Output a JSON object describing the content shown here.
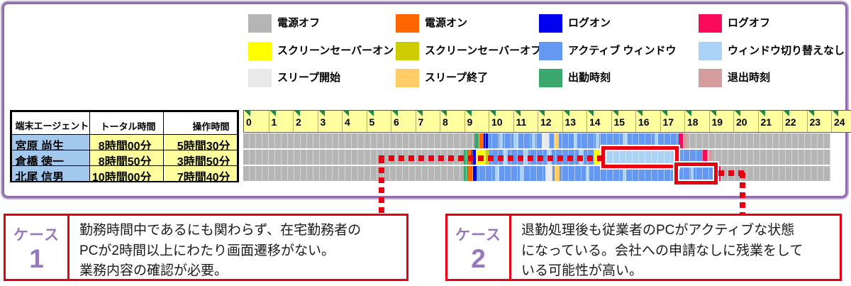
{
  "colors": {
    "panel_border": "#8f6cab",
    "panel_border_light": "#c0a8d4",
    "accent_red": "#e60012",
    "case_label_purple": "#9678bc",
    "name_cell_bg": "#a2c8ee",
    "time_cell_bg": "#ffff9e",
    "hour_header_bg": "#ffffa0",
    "tick_triangle_green": "#1e8a44",
    "power_off_gray": "#b5b5b5"
  },
  "legend": {
    "items": [
      {
        "key": "power_off",
        "label": "電源オフ",
        "color": "#b5b5b5"
      },
      {
        "key": "power_on",
        "label": "電源オン",
        "color": "#ff6600"
      },
      {
        "key": "logon",
        "label": "ログオン",
        "color": "#0000ee"
      },
      {
        "key": "logoff",
        "label": "ログオフ",
        "color": "#fa0a5a"
      },
      {
        "key": "ss_on",
        "label": "スクリーンセーバーオン",
        "color": "#ffff00"
      },
      {
        "key": "ss_off",
        "label": "スクリーンセーバーオフ",
        "color": "#cccc00"
      },
      {
        "key": "active",
        "label": "アクティブ ウィンドウ",
        "color": "#6598f0"
      },
      {
        "key": "no_switch",
        "label": "ウィンドウ切り替えなし",
        "color": "#aad2f7"
      },
      {
        "key": "sleep_start",
        "label": "スリープ開始",
        "color": "#e9e9e9"
      },
      {
        "key": "sleep_end",
        "label": "スリープ終了",
        "color": "#ffcc66"
      },
      {
        "key": "clock_in",
        "label": "出勤時刻",
        "color": "#3aa76d"
      },
      {
        "key": "clock_out",
        "label": "退出時刻",
        "color": "#d49c9c"
      }
    ]
  },
  "table": {
    "headers": {
      "agent": "端末エージェント名",
      "total": "トータル時間",
      "op": "操作時間"
    },
    "rows": [
      {
        "name": "宮原 尚生",
        "total": "8時間00分",
        "op": "5時間30分"
      },
      {
        "name": "倉橋 徳一",
        "total": "8時間50分",
        "op": "3時間50分"
      },
      {
        "name": "北尾 信男",
        "total": "10時間00分",
        "op": "7時間40分"
      }
    ]
  },
  "chart_data": {
    "type": "heatmap",
    "x_axis": {
      "unit": "hour",
      "min": 0,
      "max": 24,
      "tick_labels": [
        "0",
        "1",
        "2",
        "3",
        "4",
        "5",
        "6",
        "7",
        "8",
        "9",
        "10",
        "11",
        "12",
        "13",
        "14",
        "15",
        "16",
        "17",
        "18",
        "19",
        "20",
        "21",
        "22",
        "23",
        "24"
      ]
    },
    "rows": [
      {
        "name": "宮原 尚生",
        "segments": [
          {
            "start": 0,
            "end": 9.45,
            "state": "power_off"
          },
          {
            "start": 9.45,
            "end": 9.63,
            "state": "clock_in"
          },
          {
            "start": 9.63,
            "end": 9.82,
            "state": "power_on"
          },
          {
            "start": 9.82,
            "end": 10.0,
            "state": "logon"
          },
          {
            "start": 10.0,
            "end": 10.45,
            "state": "active"
          },
          {
            "start": 10.45,
            "end": 10.6,
            "state": "no_switch"
          },
          {
            "start": 10.6,
            "end": 11.05,
            "state": "active"
          },
          {
            "start": 11.05,
            "end": 11.25,
            "state": "no_switch"
          },
          {
            "start": 11.25,
            "end": 11.8,
            "state": "active"
          },
          {
            "start": 11.8,
            "end": 11.95,
            "state": "no_switch"
          },
          {
            "start": 11.95,
            "end": 12.2,
            "state": "active"
          },
          {
            "start": 12.2,
            "end": 12.5,
            "state": "sleep_start"
          },
          {
            "start": 12.5,
            "end": 12.7,
            "state": "active"
          },
          {
            "start": 12.7,
            "end": 12.9,
            "state": "sleep_end"
          },
          {
            "start": 12.9,
            "end": 13.5,
            "state": "active"
          },
          {
            "start": 13.5,
            "end": 13.65,
            "state": "no_switch"
          },
          {
            "start": 13.65,
            "end": 14.4,
            "state": "active"
          },
          {
            "start": 14.4,
            "end": 14.55,
            "state": "no_switch"
          },
          {
            "start": 14.55,
            "end": 15.5,
            "state": "active"
          },
          {
            "start": 15.5,
            "end": 15.7,
            "state": "no_switch"
          },
          {
            "start": 15.7,
            "end": 16.8,
            "state": "active"
          },
          {
            "start": 16.8,
            "end": 16.95,
            "state": "no_switch"
          },
          {
            "start": 16.95,
            "end": 17.8,
            "state": "active"
          },
          {
            "start": 17.8,
            "end": 17.97,
            "state": "logoff"
          },
          {
            "start": 17.97,
            "end": 18.15,
            "state": "clock_out"
          },
          {
            "start": 18.15,
            "end": 24,
            "state": "power_off"
          }
        ]
      },
      {
        "name": "倉橋 徳一",
        "segments": [
          {
            "start": 0,
            "end": 9.0,
            "state": "power_off"
          },
          {
            "start": 9.0,
            "end": 9.16,
            "state": "clock_in"
          },
          {
            "start": 9.16,
            "end": 9.33,
            "state": "power_on"
          },
          {
            "start": 9.33,
            "end": 9.5,
            "state": "logon"
          },
          {
            "start": 9.5,
            "end": 9.88,
            "state": "ss_on"
          },
          {
            "start": 9.88,
            "end": 10.05,
            "state": "ss_off"
          },
          {
            "start": 10.05,
            "end": 10.6,
            "state": "active"
          },
          {
            "start": 10.6,
            "end": 10.8,
            "state": "no_switch"
          },
          {
            "start": 10.8,
            "end": 11.45,
            "state": "active"
          },
          {
            "start": 11.45,
            "end": 11.65,
            "state": "no_switch"
          },
          {
            "start": 11.65,
            "end": 12.4,
            "state": "active"
          },
          {
            "start": 12.4,
            "end": 12.6,
            "state": "no_switch"
          },
          {
            "start": 12.6,
            "end": 13.7,
            "state": "active"
          },
          {
            "start": 13.7,
            "end": 13.9,
            "state": "no_switch"
          },
          {
            "start": 13.9,
            "end": 14.35,
            "state": "active"
          },
          {
            "start": 14.35,
            "end": 14.7,
            "state": "ss_on"
          },
          {
            "start": 14.7,
            "end": 14.85,
            "state": "ss_off"
          },
          {
            "start": 14.85,
            "end": 17.6,
            "state": "no_switch"
          },
          {
            "start": 17.6,
            "end": 18.75,
            "state": "active"
          },
          {
            "start": 18.75,
            "end": 18.95,
            "state": "logoff"
          },
          {
            "start": 18.95,
            "end": 19.15,
            "state": "clock_out"
          },
          {
            "start": 19.15,
            "end": 24,
            "state": "power_off"
          }
        ]
      },
      {
        "name": "北尾 信男",
        "segments": [
          {
            "start": 0,
            "end": 9.0,
            "state": "power_off"
          },
          {
            "start": 9.0,
            "end": 9.2,
            "state": "clock_in"
          },
          {
            "start": 9.2,
            "end": 9.4,
            "state": "power_on"
          },
          {
            "start": 9.4,
            "end": 9.55,
            "state": "logon"
          },
          {
            "start": 9.55,
            "end": 10.3,
            "state": "active"
          },
          {
            "start": 10.3,
            "end": 10.45,
            "state": "no_switch"
          },
          {
            "start": 10.45,
            "end": 11.3,
            "state": "active"
          },
          {
            "start": 11.3,
            "end": 11.45,
            "state": "no_switch"
          },
          {
            "start": 11.45,
            "end": 12.35,
            "state": "active"
          },
          {
            "start": 12.35,
            "end": 12.65,
            "state": "sleep_start"
          },
          {
            "start": 12.65,
            "end": 12.72,
            "state": "active"
          },
          {
            "start": 12.72,
            "end": 12.92,
            "state": "sleep_end"
          },
          {
            "start": 12.92,
            "end": 14.0,
            "state": "active"
          },
          {
            "start": 14.0,
            "end": 14.15,
            "state": "no_switch"
          },
          {
            "start": 14.15,
            "end": 15.5,
            "state": "active"
          },
          {
            "start": 15.5,
            "end": 15.65,
            "state": "no_switch"
          },
          {
            "start": 15.65,
            "end": 17.65,
            "state": "active"
          },
          {
            "start": 17.65,
            "end": 17.82,
            "state": "clock_out"
          },
          {
            "start": 17.82,
            "end": 18.3,
            "state": "active"
          },
          {
            "start": 18.3,
            "end": 18.42,
            "state": "no_switch"
          },
          {
            "start": 18.42,
            "end": 19.25,
            "state": "active"
          },
          {
            "start": 19.25,
            "end": 19.33,
            "state": "power_off"
          },
          {
            "start": 19.33,
            "end": 19.5,
            "state": "logoff"
          },
          {
            "start": 19.5,
            "end": 24,
            "state": "power_off"
          }
        ]
      }
    ],
    "highlights": [
      {
        "row": 1,
        "start": 14.8,
        "end": 17.62,
        "case": "1"
      },
      {
        "row": 2,
        "start": 17.8,
        "end": 19.22,
        "case": "2"
      }
    ],
    "legend_position": "top",
    "grid": true
  },
  "cases": [
    {
      "label": "ケース",
      "number": "1",
      "text": "勤務時間中であるにも関わらず、在宅勤務者の\nPCが2時間以上にわたり画面遷移がない。\n業務内容の確認が必要。"
    },
    {
      "label": "ケース",
      "number": "2",
      "text": "退勤処理後も従業者のPCがアクティブな状態\nになっている。会社への申請なしに残業をして\nいる可能性が高い。"
    }
  ]
}
